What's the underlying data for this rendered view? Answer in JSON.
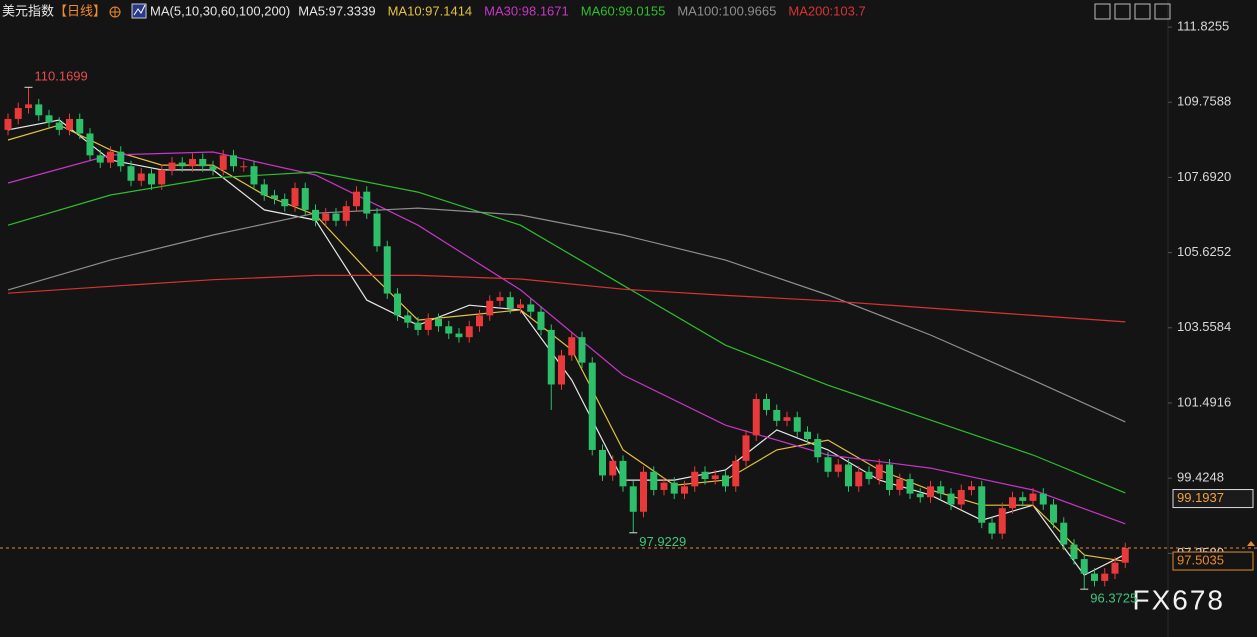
{
  "header": {
    "title": "美元指数",
    "period": "【日线】",
    "ma_params": "MA(5,10,30,60,100,200)"
  },
  "chart_data": {
    "type": "candlestick",
    "ylim": [
      95.25,
      112.57
    ],
    "yticks": [
      111.8255,
      109.7588,
      {
        "value": 107.692,
        "label": "107.6920"
      },
      105.6252,
      103.5584,
      101.4916,
      99.4248,
      {
        "value": 97.358,
        "label": "97.3580"
      }
    ],
    "up_color": "#e8393b",
    "down_color": "#2dbf6a",
    "open": [
      109.0,
      109.3,
      109.6,
      109.7,
      109.4,
      109.2,
      109.0,
      109.3,
      108.9,
      108.3,
      108.1,
      108.4,
      108.0,
      107.6,
      107.8,
      107.5,
      107.9,
      108.1,
      108.0,
      108.2,
      108.0,
      107.9,
      108.3,
      108.0,
      108.0,
      107.5,
      107.2,
      107.1,
      106.9,
      107.4,
      106.8,
      106.5,
      106.7,
      106.5,
      106.9,
      107.3,
      106.7,
      105.8,
      104.5,
      103.9,
      103.7,
      103.5,
      103.8,
      103.6,
      103.4,
      103.3,
      103.6,
      103.9,
      104.3,
      104.4,
      104.1,
      104.2,
      104.0,
      103.5,
      102.0,
      102.8,
      103.3,
      102.6,
      100.2,
      99.5,
      99.9,
      99.2,
      98.5,
      99.6,
      99.1,
      99.3,
      99.0,
      99.2,
      99.6,
      99.4,
      99.5,
      99.2,
      99.9,
      100.6,
      101.6,
      101.3,
      101.0,
      101.1,
      100.7,
      100.5,
      100.0,
      99.6,
      99.8,
      99.2,
      99.6,
      99.4,
      99.8,
      99.1,
      99.4,
      99.0,
      98.9,
      99.2,
      99.0,
      98.7,
      99.1,
      99.2,
      98.2,
      97.9,
      98.6,
      98.9,
      98.8,
      99.0,
      98.7,
      98.2,
      97.6,
      97.2,
      96.8,
      96.6,
      96.8,
      97.1
    ],
    "high": [
      109.45,
      109.75,
      110.1699,
      109.85,
      109.55,
      109.35,
      109.45,
      109.45,
      109.05,
      108.45,
      108.55,
      108.55,
      108.15,
      107.95,
      107.95,
      108.05,
      108.25,
      108.25,
      108.35,
      108.35,
      108.15,
      108.45,
      108.45,
      108.15,
      108.15,
      107.65,
      107.35,
      107.25,
      107.55,
      107.55,
      106.95,
      106.85,
      106.85,
      107.05,
      107.45,
      107.45,
      106.85,
      105.95,
      104.65,
      104.05,
      103.85,
      103.95,
      103.95,
      103.75,
      103.55,
      103.75,
      104.05,
      104.45,
      104.55,
      104.55,
      104.35,
      104.35,
      104.15,
      103.65,
      102.95,
      103.45,
      103.45,
      102.75,
      100.35,
      100.05,
      100.05,
      99.35,
      99.75,
      99.75,
      99.45,
      99.45,
      99.35,
      99.75,
      99.75,
      99.65,
      99.65,
      100.05,
      100.75,
      101.75,
      101.75,
      101.45,
      101.25,
      101.25,
      100.85,
      100.65,
      100.15,
      99.95,
      99.95,
      99.75,
      99.75,
      99.95,
      99.95,
      99.55,
      99.55,
      99.15,
      99.35,
      99.35,
      99.15,
      99.25,
      99.35,
      99.35,
      98.35,
      98.75,
      99.05,
      99.05,
      99.15,
      99.15,
      98.85,
      98.35,
      97.75,
      97.35,
      96.95,
      96.95,
      97.25,
      97.65
    ],
    "low": [
      108.85,
      109.15,
      109.45,
      109.25,
      109.05,
      108.85,
      108.85,
      108.75,
      108.15,
      107.95,
      107.95,
      107.85,
      107.45,
      107.45,
      107.35,
      107.35,
      107.75,
      107.85,
      107.85,
      107.85,
      107.75,
      107.75,
      107.85,
      107.85,
      107.35,
      107.05,
      106.95,
      106.75,
      106.75,
      106.65,
      106.35,
      106.35,
      106.35,
      106.35,
      106.75,
      106.55,
      105.65,
      104.35,
      103.75,
      103.55,
      103.35,
      103.35,
      103.45,
      103.25,
      103.15,
      103.15,
      103.45,
      103.75,
      104.15,
      103.95,
      103.95,
      103.85,
      103.35,
      101.3,
      101.85,
      102.65,
      102.45,
      100.05,
      99.35,
      99.35,
      99.05,
      97.9229,
      98.35,
      98.95,
      98.95,
      98.85,
      98.85,
      99.05,
      99.25,
      99.25,
      99.05,
      99.05,
      99.75,
      100.45,
      101.15,
      100.85,
      100.85,
      100.55,
      100.35,
      99.85,
      99.45,
      99.45,
      99.05,
      99.05,
      99.25,
      99.25,
      98.95,
      98.95,
      98.85,
      98.75,
      98.75,
      98.85,
      98.55,
      98.55,
      98.95,
      98.05,
      97.75,
      97.75,
      98.45,
      98.65,
      98.65,
      98.55,
      98.05,
      97.45,
      97.05,
      96.3725,
      96.45,
      96.45,
      96.65,
      96.95
    ],
    "close": [
      109.3,
      109.6,
      109.7,
      109.4,
      109.2,
      109.0,
      109.3,
      108.9,
      108.3,
      108.1,
      108.4,
      108.0,
      107.6,
      107.8,
      107.5,
      107.9,
      108.1,
      108.0,
      108.2,
      108.0,
      107.9,
      108.3,
      108.0,
      108.0,
      107.5,
      107.2,
      107.1,
      106.9,
      107.4,
      106.8,
      106.5,
      106.7,
      106.5,
      106.9,
      107.3,
      106.7,
      105.8,
      104.5,
      103.9,
      103.7,
      103.5,
      103.8,
      103.6,
      103.4,
      103.3,
      103.6,
      103.9,
      104.3,
      104.4,
      104.1,
      104.2,
      104.0,
      103.5,
      102.0,
      102.8,
      103.3,
      102.6,
      100.2,
      99.5,
      99.9,
      99.2,
      98.5,
      99.6,
      99.1,
      99.3,
      99.0,
      99.2,
      99.6,
      99.4,
      99.5,
      99.2,
      99.9,
      100.6,
      101.6,
      101.3,
      101.0,
      101.1,
      100.7,
      100.5,
      100.0,
      99.6,
      99.8,
      99.2,
      99.6,
      99.4,
      99.8,
      99.1,
      99.4,
      99.0,
      98.9,
      99.2,
      99.0,
      98.7,
      99.1,
      99.2,
      98.2,
      97.9,
      98.6,
      98.9,
      98.8,
      99.0,
      98.7,
      98.2,
      97.6,
      97.2,
      96.8,
      96.6,
      96.8,
      97.1,
      97.5035
    ],
    "high_labels": [
      110.1699
    ],
    "low_labels": [
      97.9229,
      96.3725
    ],
    "marker_label": 99.1937,
    "moving_averages": [
      {
        "label": "MA5:97.3339",
        "color": "#e6e6e6",
        "x": [
          0,
          5,
          10,
          15,
          20,
          25,
          30,
          35,
          40,
          45,
          50,
          55,
          60,
          65,
          70,
          75,
          80,
          85,
          90,
          95,
          100,
          105,
          109
        ],
        "values": [
          109.0,
          109.27,
          108.17,
          107.9,
          107.9,
          106.8,
          106.52,
          104.32,
          103.63,
          104.18,
          104.05,
          102.12,
          99.37,
          99.37,
          99.65,
          100.75,
          100.2,
          99.37,
          98.96,
          98.27,
          98.68,
          96.76,
          97.33
        ]
      },
      {
        "label": "MA10:97.1414",
        "color": "#e3c23b",
        "x": [
          0,
          5,
          10,
          15,
          20,
          25,
          30,
          35,
          40,
          45,
          50,
          55,
          60,
          65,
          70,
          75,
          80,
          85,
          90,
          95,
          100,
          105,
          109
        ],
        "values": [
          108.72,
          109.13,
          108.45,
          108.03,
          108.03,
          107.21,
          106.66,
          105.15,
          103.77,
          103.91,
          104.05,
          102.95,
          100.2,
          99.23,
          99.37,
          100.2,
          100.47,
          99.65,
          99.1,
          98.68,
          98.68,
          97.31,
          97.14
        ]
      },
      {
        "label": "MA30:98.1671",
        "color": "#c835c8",
        "x": [
          0,
          10,
          20,
          30,
          40,
          50,
          60,
          70,
          80,
          90,
          100,
          109
        ],
        "values": [
          107.54,
          108.31,
          108.39,
          107.76,
          106.38,
          104.6,
          102.26,
          100.88,
          100.06,
          99.7,
          99.1,
          98.17
        ]
      },
      {
        "label": "MA60:99.0155",
        "color": "#2dbf2d",
        "x": [
          0,
          10,
          20,
          30,
          40,
          50,
          60,
          70,
          80,
          90,
          100,
          109
        ],
        "values": [
          106.38,
          107.21,
          107.68,
          107.84,
          107.29,
          106.38,
          104.73,
          103.08,
          101.98,
          101.02,
          100.06,
          99.02
        ]
      },
      {
        "label": "MA100:100.9665",
        "color": "#8e8e8e",
        "x": [
          0,
          10,
          20,
          30,
          40,
          50,
          60,
          70,
          80,
          90,
          100,
          109
        ],
        "values": [
          104.6,
          105.42,
          106.11,
          106.71,
          106.85,
          106.66,
          106.11,
          105.42,
          104.46,
          103.36,
          102.12,
          100.97
        ]
      },
      {
        "label": "MA200:103.7",
        "color": "#d93232",
        "x": [
          0,
          10,
          20,
          30,
          40,
          50,
          60,
          70,
          80,
          90,
          100,
          109
        ],
        "values": [
          104.51,
          104.7,
          104.88,
          105.0,
          105.0,
          104.9,
          104.62,
          104.45,
          104.3,
          104.1,
          103.9,
          103.72
        ]
      }
    ]
  },
  "watermark": "FX678"
}
